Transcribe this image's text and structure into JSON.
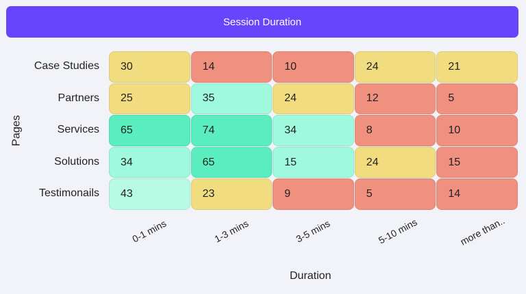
{
  "chart_data": {
    "type": "heatmap",
    "title": "Session Duration",
    "xlabel": "Duration",
    "ylabel": "Pages",
    "x_categories": [
      "0-1 mins",
      "1-3 mins",
      "3-5 mins",
      "5-10 mins",
      "more than.."
    ],
    "y_categories": [
      "Case Studies",
      "Partners",
      "Services",
      "Solutions",
      "Testimonails"
    ],
    "values": [
      [
        30,
        14,
        10,
        24,
        21
      ],
      [
        25,
        35,
        24,
        12,
        5
      ],
      [
        65,
        74,
        34,
        8,
        10
      ],
      [
        34,
        65,
        15,
        24,
        15
      ],
      [
        43,
        23,
        9,
        5,
        14
      ]
    ],
    "cell_colors": [
      [
        "yellow",
        "red",
        "red",
        "yellow",
        "yellow"
      ],
      [
        "yellow",
        "mint",
        "yellow",
        "red",
        "red"
      ],
      [
        "green",
        "green",
        "mint",
        "red",
        "red"
      ],
      [
        "mint",
        "green",
        "mint",
        "yellow",
        "red"
      ],
      [
        "pale",
        "yellow",
        "red",
        "red",
        "red"
      ]
    ],
    "palette": {
      "red": "#f0907e",
      "yellow": "#f1dc80",
      "mint": "#9ff9dd",
      "green": "#5aeebf",
      "pale": "#b8fbe4"
    },
    "title_color": "#6645fc",
    "legend": "none"
  }
}
